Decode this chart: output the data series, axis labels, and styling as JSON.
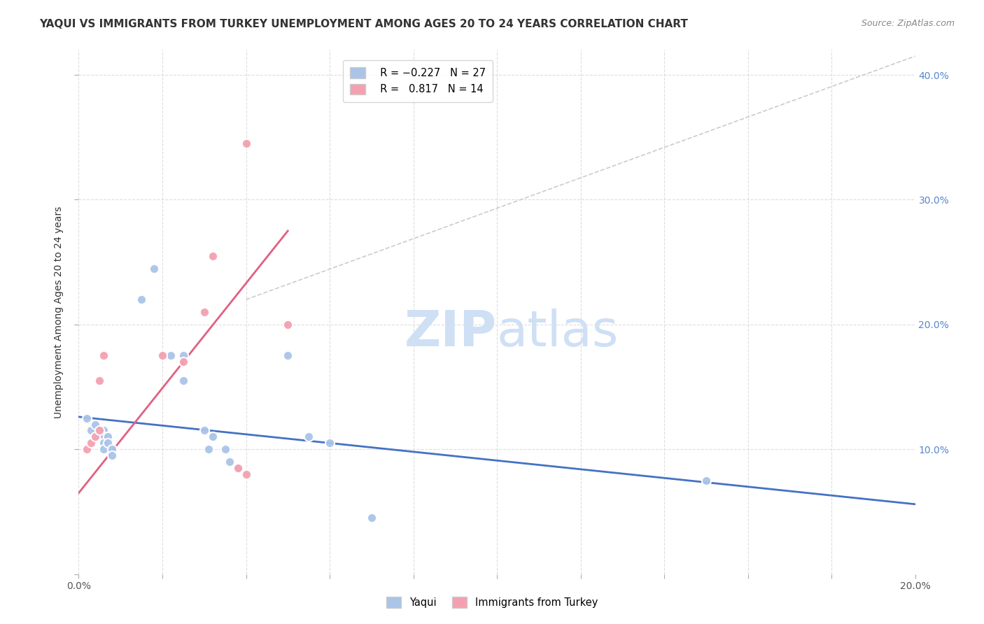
{
  "title": "YAQUI VS IMMIGRANTS FROM TURKEY UNEMPLOYMENT AMONG AGES 20 TO 24 YEARS CORRELATION CHART",
  "source": "Source: ZipAtlas.com",
  "ylabel": "Unemployment Among Ages 20 to 24 years",
  "xlim": [
    0.0,
    0.2
  ],
  "ylim": [
    0.0,
    0.42
  ],
  "x_ticks": [
    0.0,
    0.02,
    0.04,
    0.06,
    0.08,
    0.1,
    0.12,
    0.14,
    0.16,
    0.18,
    0.2
  ],
  "y_ticks_left": [
    0.0,
    0.1,
    0.2,
    0.3,
    0.4
  ],
  "y_ticks_right": [
    0.1,
    0.2,
    0.3,
    0.4
  ],
  "background_color": "#ffffff",
  "grid_color": "#dddddd",
  "yaqui_color": "#aac4e8",
  "turkey_color": "#f4a0b0",
  "yaqui_line_color": "#4472c4",
  "turkey_line_color": "#e06080",
  "dashed_line_color": "#cccccc",
  "yaqui_R": -0.227,
  "yaqui_N": 27,
  "turkey_R": 0.817,
  "turkey_N": 14,
  "yaqui_points": [
    [
      0.002,
      0.125
    ],
    [
      0.003,
      0.115
    ],
    [
      0.004,
      0.12
    ],
    [
      0.006,
      0.115
    ],
    [
      0.006,
      0.11
    ],
    [
      0.006,
      0.105
    ],
    [
      0.006,
      0.1
    ],
    [
      0.007,
      0.11
    ],
    [
      0.007,
      0.105
    ],
    [
      0.008,
      0.1
    ],
    [
      0.008,
      0.095
    ],
    [
      0.015,
      0.22
    ],
    [
      0.018,
      0.245
    ],
    [
      0.022,
      0.175
    ],
    [
      0.025,
      0.175
    ],
    [
      0.025,
      0.155
    ],
    [
      0.03,
      0.115
    ],
    [
      0.031,
      0.1
    ],
    [
      0.032,
      0.11
    ],
    [
      0.035,
      0.1
    ],
    [
      0.036,
      0.09
    ],
    [
      0.038,
      0.085
    ],
    [
      0.05,
      0.175
    ],
    [
      0.055,
      0.11
    ],
    [
      0.06,
      0.105
    ],
    [
      0.07,
      0.045
    ],
    [
      0.15,
      0.075
    ]
  ],
  "turkey_points": [
    [
      0.002,
      0.1
    ],
    [
      0.003,
      0.105
    ],
    [
      0.004,
      0.11
    ],
    [
      0.005,
      0.115
    ],
    [
      0.005,
      0.155
    ],
    [
      0.006,
      0.175
    ],
    [
      0.02,
      0.175
    ],
    [
      0.025,
      0.17
    ],
    [
      0.03,
      0.21
    ],
    [
      0.032,
      0.255
    ],
    [
      0.038,
      0.085
    ],
    [
      0.04,
      0.08
    ],
    [
      0.04,
      0.345
    ],
    [
      0.05,
      0.2
    ]
  ],
  "yaqui_line_x": [
    0.0,
    0.2
  ],
  "yaqui_line_y": [
    0.126,
    0.056
  ],
  "turkey_line_x": [
    0.0,
    0.05
  ],
  "turkey_line_y": [
    0.065,
    0.275
  ],
  "dashed_line_x": [
    0.04,
    0.2
  ],
  "dashed_line_y": [
    0.22,
    0.415
  ],
  "watermark_zip": "ZIP",
  "watermark_atlas": "atlas",
  "watermark_color": "#cfe0f5",
  "marker_size": 90,
  "marker_edge_width": 1.5
}
